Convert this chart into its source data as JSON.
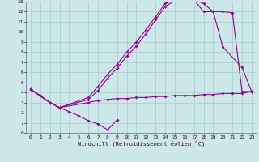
{
  "background_color": "#cce8e8",
  "line_color": "#990099",
  "grid_color": "#aacccc",
  "xlabel": "Windchill (Refroidissement éolien,°C)",
  "xlim": [
    -0.5,
    23.5
  ],
  "ylim": [
    0,
    13
  ],
  "xticks": [
    0,
    1,
    2,
    3,
    4,
    5,
    6,
    7,
    8,
    9,
    10,
    11,
    12,
    13,
    14,
    15,
    16,
    17,
    18,
    19,
    20,
    21,
    22,
    23
  ],
  "yticks": [
    0,
    1,
    2,
    3,
    4,
    5,
    6,
    7,
    8,
    9,
    10,
    11,
    12,
    13
  ],
  "line1_x": [
    0,
    1,
    2,
    3,
    4,
    5,
    6,
    7,
    8,
    9
  ],
  "line1_y": [
    4.3,
    3.7,
    3.0,
    2.5,
    2.1,
    1.7,
    1.2,
    0.9,
    0.3,
    1.3
  ],
  "line2_x": [
    0,
    2,
    3,
    6,
    7,
    8,
    9,
    10,
    11,
    12,
    13,
    14,
    15,
    16,
    17,
    18,
    19,
    20,
    22,
    23
  ],
  "line2_y": [
    4.3,
    3.0,
    2.5,
    3.3,
    4.2,
    5.4,
    6.4,
    7.6,
    8.6,
    9.8,
    11.2,
    12.5,
    13.1,
    13.2,
    13.2,
    12.8,
    12.0,
    8.5,
    6.5,
    4.1
  ],
  "line3_x": [
    0,
    2,
    3,
    6,
    7,
    8,
    9,
    10,
    11,
    12,
    13,
    14,
    15,
    16,
    17,
    18,
    19,
    20,
    21,
    22,
    23
  ],
  "line3_y": [
    4.3,
    3.0,
    2.5,
    3.5,
    4.6,
    5.8,
    6.8,
    8.0,
    9.0,
    10.2,
    11.5,
    12.8,
    13.2,
    13.3,
    13.2,
    12.0,
    12.0,
    12.0,
    11.9,
    4.1,
    4.1
  ],
  "line4_x": [
    0,
    2,
    3,
    6,
    7,
    8,
    9,
    10,
    11,
    12,
    13,
    14,
    15,
    16,
    17,
    18,
    19,
    20,
    21,
    22,
    23
  ],
  "line4_y": [
    4.3,
    3.0,
    2.5,
    3.0,
    3.2,
    3.3,
    3.4,
    3.4,
    3.5,
    3.5,
    3.6,
    3.6,
    3.7,
    3.7,
    3.7,
    3.8,
    3.8,
    3.9,
    3.9,
    3.9,
    4.1
  ]
}
